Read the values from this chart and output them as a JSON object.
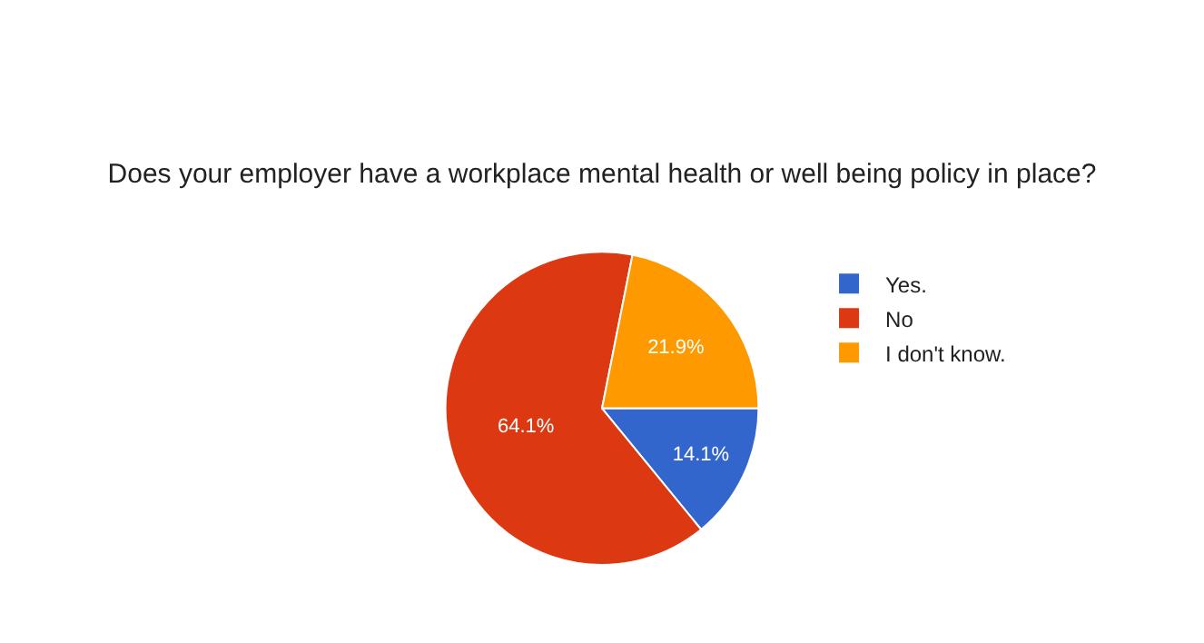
{
  "chart_data": {
    "type": "pie",
    "title": "Does your employer have a workplace mental health or well being policy in place?",
    "categories": [
      "Yes.",
      "No",
      "I don't know."
    ],
    "values": [
      14.1,
      64.1,
      21.9
    ],
    "colors": [
      "#3366cc",
      "#dc3912",
      "#ff9900"
    ],
    "value_labels": [
      "14.1%",
      "64.1%",
      "21.9%"
    ],
    "legend": "right"
  }
}
